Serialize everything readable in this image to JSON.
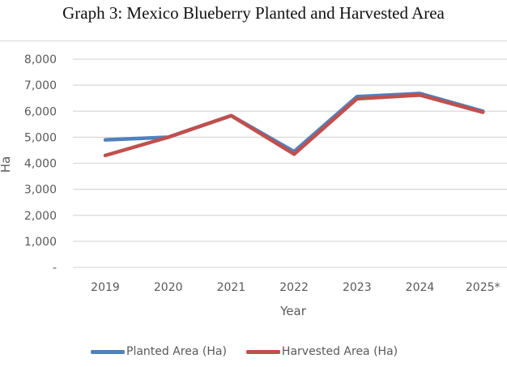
{
  "chart_data": {
    "type": "line",
    "title": "Graph 3: Mexico Blueberry Planted and Harvested Area",
    "xlabel": "Year",
    "ylabel": "Ha",
    "categories": [
      "2019",
      "2020",
      "2021",
      "2022",
      "2023",
      "2024",
      "2025*"
    ],
    "ylim": [
      0,
      8000
    ],
    "yticks": [
      0,
      1000,
      2000,
      3000,
      4000,
      5000,
      6000,
      7000,
      8000
    ],
    "ytick_labels": [
      "-",
      "1,000",
      "2,000",
      "3,000",
      "4,000",
      "5,000",
      "6,000",
      "7,000",
      "8,000"
    ],
    "grid": true,
    "legend_position": "bottom",
    "series": [
      {
        "name": "Planted Area (Ha)",
        "color": "#4f81bd",
        "values": [
          4900,
          5000,
          5830,
          4450,
          6560,
          6680,
          6000
        ]
      },
      {
        "name": "Harvested Area (Ha)",
        "color": "#c0504d",
        "values": [
          4300,
          5000,
          5830,
          4350,
          6480,
          6620,
          5960
        ]
      }
    ]
  }
}
